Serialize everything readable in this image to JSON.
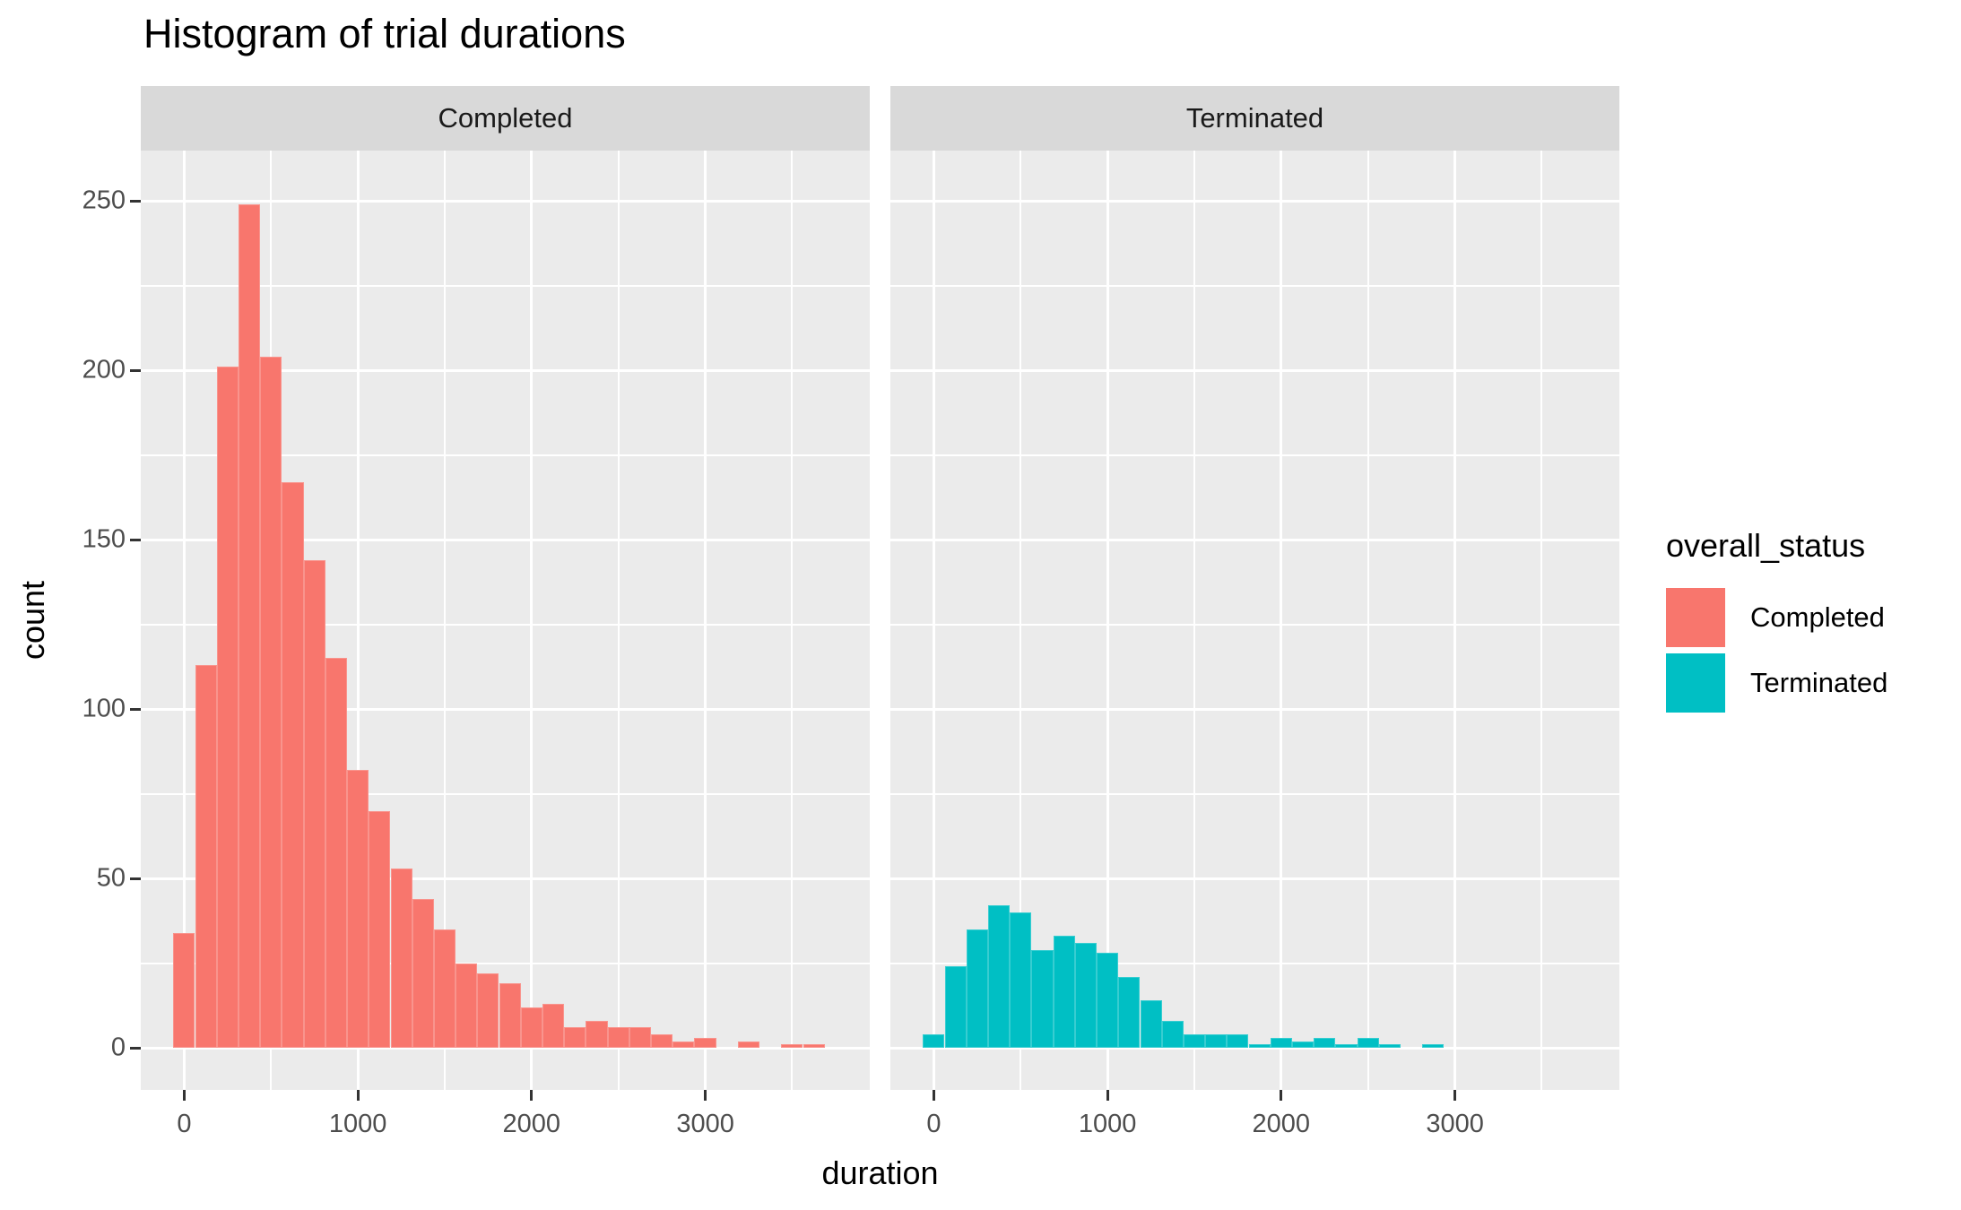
{
  "title": "Histogram of trial durations",
  "axes": {
    "x": {
      "label": "duration",
      "tick_labels": [
        "0",
        "1000",
        "2000",
        "3000"
      ],
      "tick_values": [
        0,
        1000,
        2000,
        3000
      ],
      "minor_values": [
        500,
        1500,
        2500,
        3500
      ],
      "range": [
        -250,
        3947
      ]
    },
    "y": {
      "label": "count",
      "tick_labels": [
        "0",
        "50",
        "100",
        "150",
        "200",
        "250"
      ],
      "tick_values": [
        0,
        50,
        100,
        150,
        200,
        250
      ],
      "minor_values": [
        25,
        75,
        125,
        175,
        225
      ],
      "range": [
        -12.4,
        264.8
      ]
    }
  },
  "legend": {
    "title": "overall_status",
    "items": [
      {
        "label": "Completed",
        "color": "#F8766D"
      },
      {
        "label": "Terminated",
        "color": "#00BFC4"
      }
    ]
  },
  "colors": {
    "panel_background": "#EBEBEB",
    "strip_background": "#D9D9D9",
    "gridline": "#FFFFFF",
    "tick_label": "#4D4D4D",
    "tick_mark": "#333333",
    "completed_fill": "#F8766D",
    "terminated_fill": "#00BFC4"
  },
  "chart_data": {
    "type": "bar",
    "subtype": "faceted-histogram",
    "title": "Histogram of trial durations",
    "xlabel": "duration",
    "ylabel": "count",
    "bin_width": 125,
    "xlim": [
      -250,
      3947
    ],
    "ylim": [
      0,
      264
    ],
    "grid": true,
    "legend_position": "right",
    "facets": [
      {
        "label": "Completed",
        "color": "#F8766D",
        "bin_centers": [
          0,
          125,
          250,
          375,
          500,
          625,
          750,
          875,
          1000,
          1125,
          1250,
          1375,
          1500,
          1625,
          1750,
          1875,
          2000,
          2125,
          2250,
          2375,
          2500,
          2625,
          2750,
          2875,
          3000,
          3125,
          3250,
          3375,
          3500,
          3625
        ],
        "counts": [
          34,
          113,
          201,
          249,
          204,
          167,
          144,
          115,
          82,
          70,
          53,
          44,
          35,
          25,
          22,
          19,
          12,
          13,
          6,
          8,
          6,
          6,
          4,
          2,
          3,
          0,
          2,
          0,
          1,
          1
        ]
      },
      {
        "label": "Terminated",
        "color": "#00BFC4",
        "bin_centers": [
          0,
          125,
          250,
          375,
          500,
          625,
          750,
          875,
          1000,
          1125,
          1250,
          1375,
          1500,
          1625,
          1750,
          1875,
          2000,
          2125,
          2250,
          2375,
          2500,
          2625,
          2750,
          2875
        ],
        "counts": [
          4,
          24,
          35,
          42,
          40,
          29,
          33,
          31,
          28,
          21,
          14,
          8,
          4,
          4,
          4,
          1,
          3,
          2,
          3,
          1,
          3,
          1,
          0,
          1
        ]
      }
    ]
  }
}
